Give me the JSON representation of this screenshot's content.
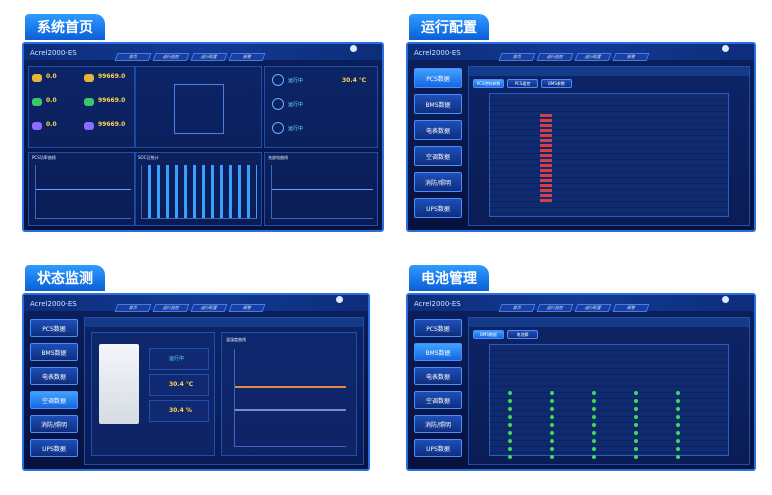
{
  "panels": [
    {
      "tab": "系统首页",
      "app": "Acrel2000-ES",
      "nav": [
        "首页",
        "运行监控",
        "运行配置",
        "报警"
      ],
      "stats": [
        "0.0",
        "99669.0",
        "0.0",
        "99669.0",
        "0.0",
        "99669.0"
      ],
      "status": [
        "运行中",
        "运行中",
        "运行中"
      ],
      "temp": "30.4 ℃",
      "chart_titles": [
        "PCS功率曲线",
        "SOC日统计",
        "充放电曲线"
      ]
    },
    {
      "tab": "运行配置",
      "app": "Acrel2000-ES",
      "nav": [
        "首页",
        "运行监控",
        "运行配置",
        "报警"
      ],
      "menu": [
        "PCS数据",
        "BMS数据",
        "电表数据",
        "空调数据",
        "消防/照明",
        "UPS数据"
      ],
      "subtabs": [
        "PCS控制参数",
        "PCS遥控",
        "BMS参数"
      ],
      "section": "PCS数据"
    },
    {
      "tab": "状态监测",
      "app": "Acrel2000-ES",
      "nav": [
        "首页",
        "运行监控",
        "运行配置",
        "报警"
      ],
      "menu": [
        "PCS数据",
        "BMS数据",
        "电表数据",
        "空调数据",
        "消防/照明",
        "UPS数据"
      ],
      "section": "空调数据",
      "status": "运行中",
      "temp": "30.4 ℃",
      "humidity": "30.4 %",
      "chart_title": "温湿度曲线"
    },
    {
      "tab": "电池管理",
      "app": "Acrel2000-ES",
      "nav": [
        "首页",
        "运行监控",
        "运行配置",
        "报警"
      ],
      "menu": [
        "PCS数据",
        "BMS数据",
        "电表数据",
        "空调数据",
        "消防/照明",
        "UPS数据"
      ],
      "subtabs": [
        "BMS数据",
        "电池簇"
      ],
      "section": "BMS数据"
    }
  ]
}
